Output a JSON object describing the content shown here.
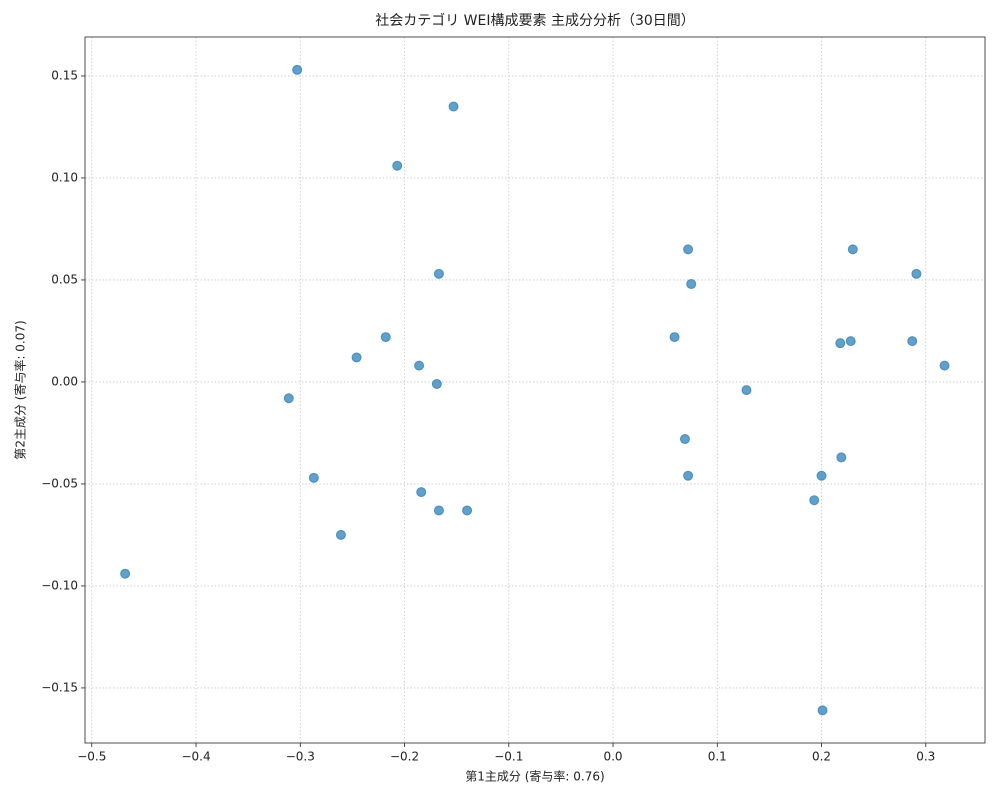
{
  "chart_data": {
    "type": "scatter",
    "title": "社会カテゴリ WEI構成要素 主成分分析（30日間）",
    "xlabel": "第1主成分 (寄与率: 0.76)",
    "ylabel": "第2主成分 (寄与率: 0.07)",
    "color": "#1f77b4",
    "grid": true,
    "x": [
      -0.303,
      -0.153,
      -0.207,
      0.072,
      0.23,
      -0.167,
      0.291,
      0.075,
      -0.218,
      0.059,
      0.218,
      0.228,
      0.287,
      -0.246,
      -0.186,
      0.318,
      -0.169,
      0.128,
      -0.311,
      0.069,
      0.219,
      -0.287,
      0.072,
      0.2,
      -0.184,
      0.193,
      -0.167,
      -0.14,
      -0.261,
      -0.468,
      0.201
    ],
    "values": [
      0.153,
      0.135,
      0.106,
      0.065,
      0.065,
      0.053,
      0.053,
      0.048,
      0.022,
      0.022,
      0.019,
      0.02,
      0.02,
      0.012,
      0.008,
      0.008,
      -0.001,
      -0.004,
      -0.008,
      -0.028,
      -0.037,
      -0.047,
      -0.046,
      -0.046,
      -0.054,
      -0.058,
      -0.063,
      -0.063,
      -0.075,
      -0.094,
      -0.161
    ],
    "xlim": [
      -0.5065,
      0.3568
    ],
    "ylim": [
      -0.177,
      0.1691
    ],
    "xticks": [
      {
        "value": -0.5,
        "label": "−0.5"
      },
      {
        "value": -0.4,
        "label": "−0.4"
      },
      {
        "value": -0.3,
        "label": "−0.3"
      },
      {
        "value": -0.2,
        "label": "−0.2"
      },
      {
        "value": -0.1,
        "label": "−0.1"
      },
      {
        "value": 0,
        "label": "0.0"
      },
      0.1,
      0.2,
      0.3
    ],
    "yticks": [
      {
        "value": -0.15,
        "label": "−0.15"
      },
      {
        "value": -0.1,
        "label": "−0.10"
      },
      {
        "value": -0.05,
        "label": "−0.05"
      },
      {
        "value": 0,
        "label": "0.00"
      },
      0.05,
      {
        "value": 0.1,
        "label": "0.10"
      },
      0.15
    ]
  }
}
